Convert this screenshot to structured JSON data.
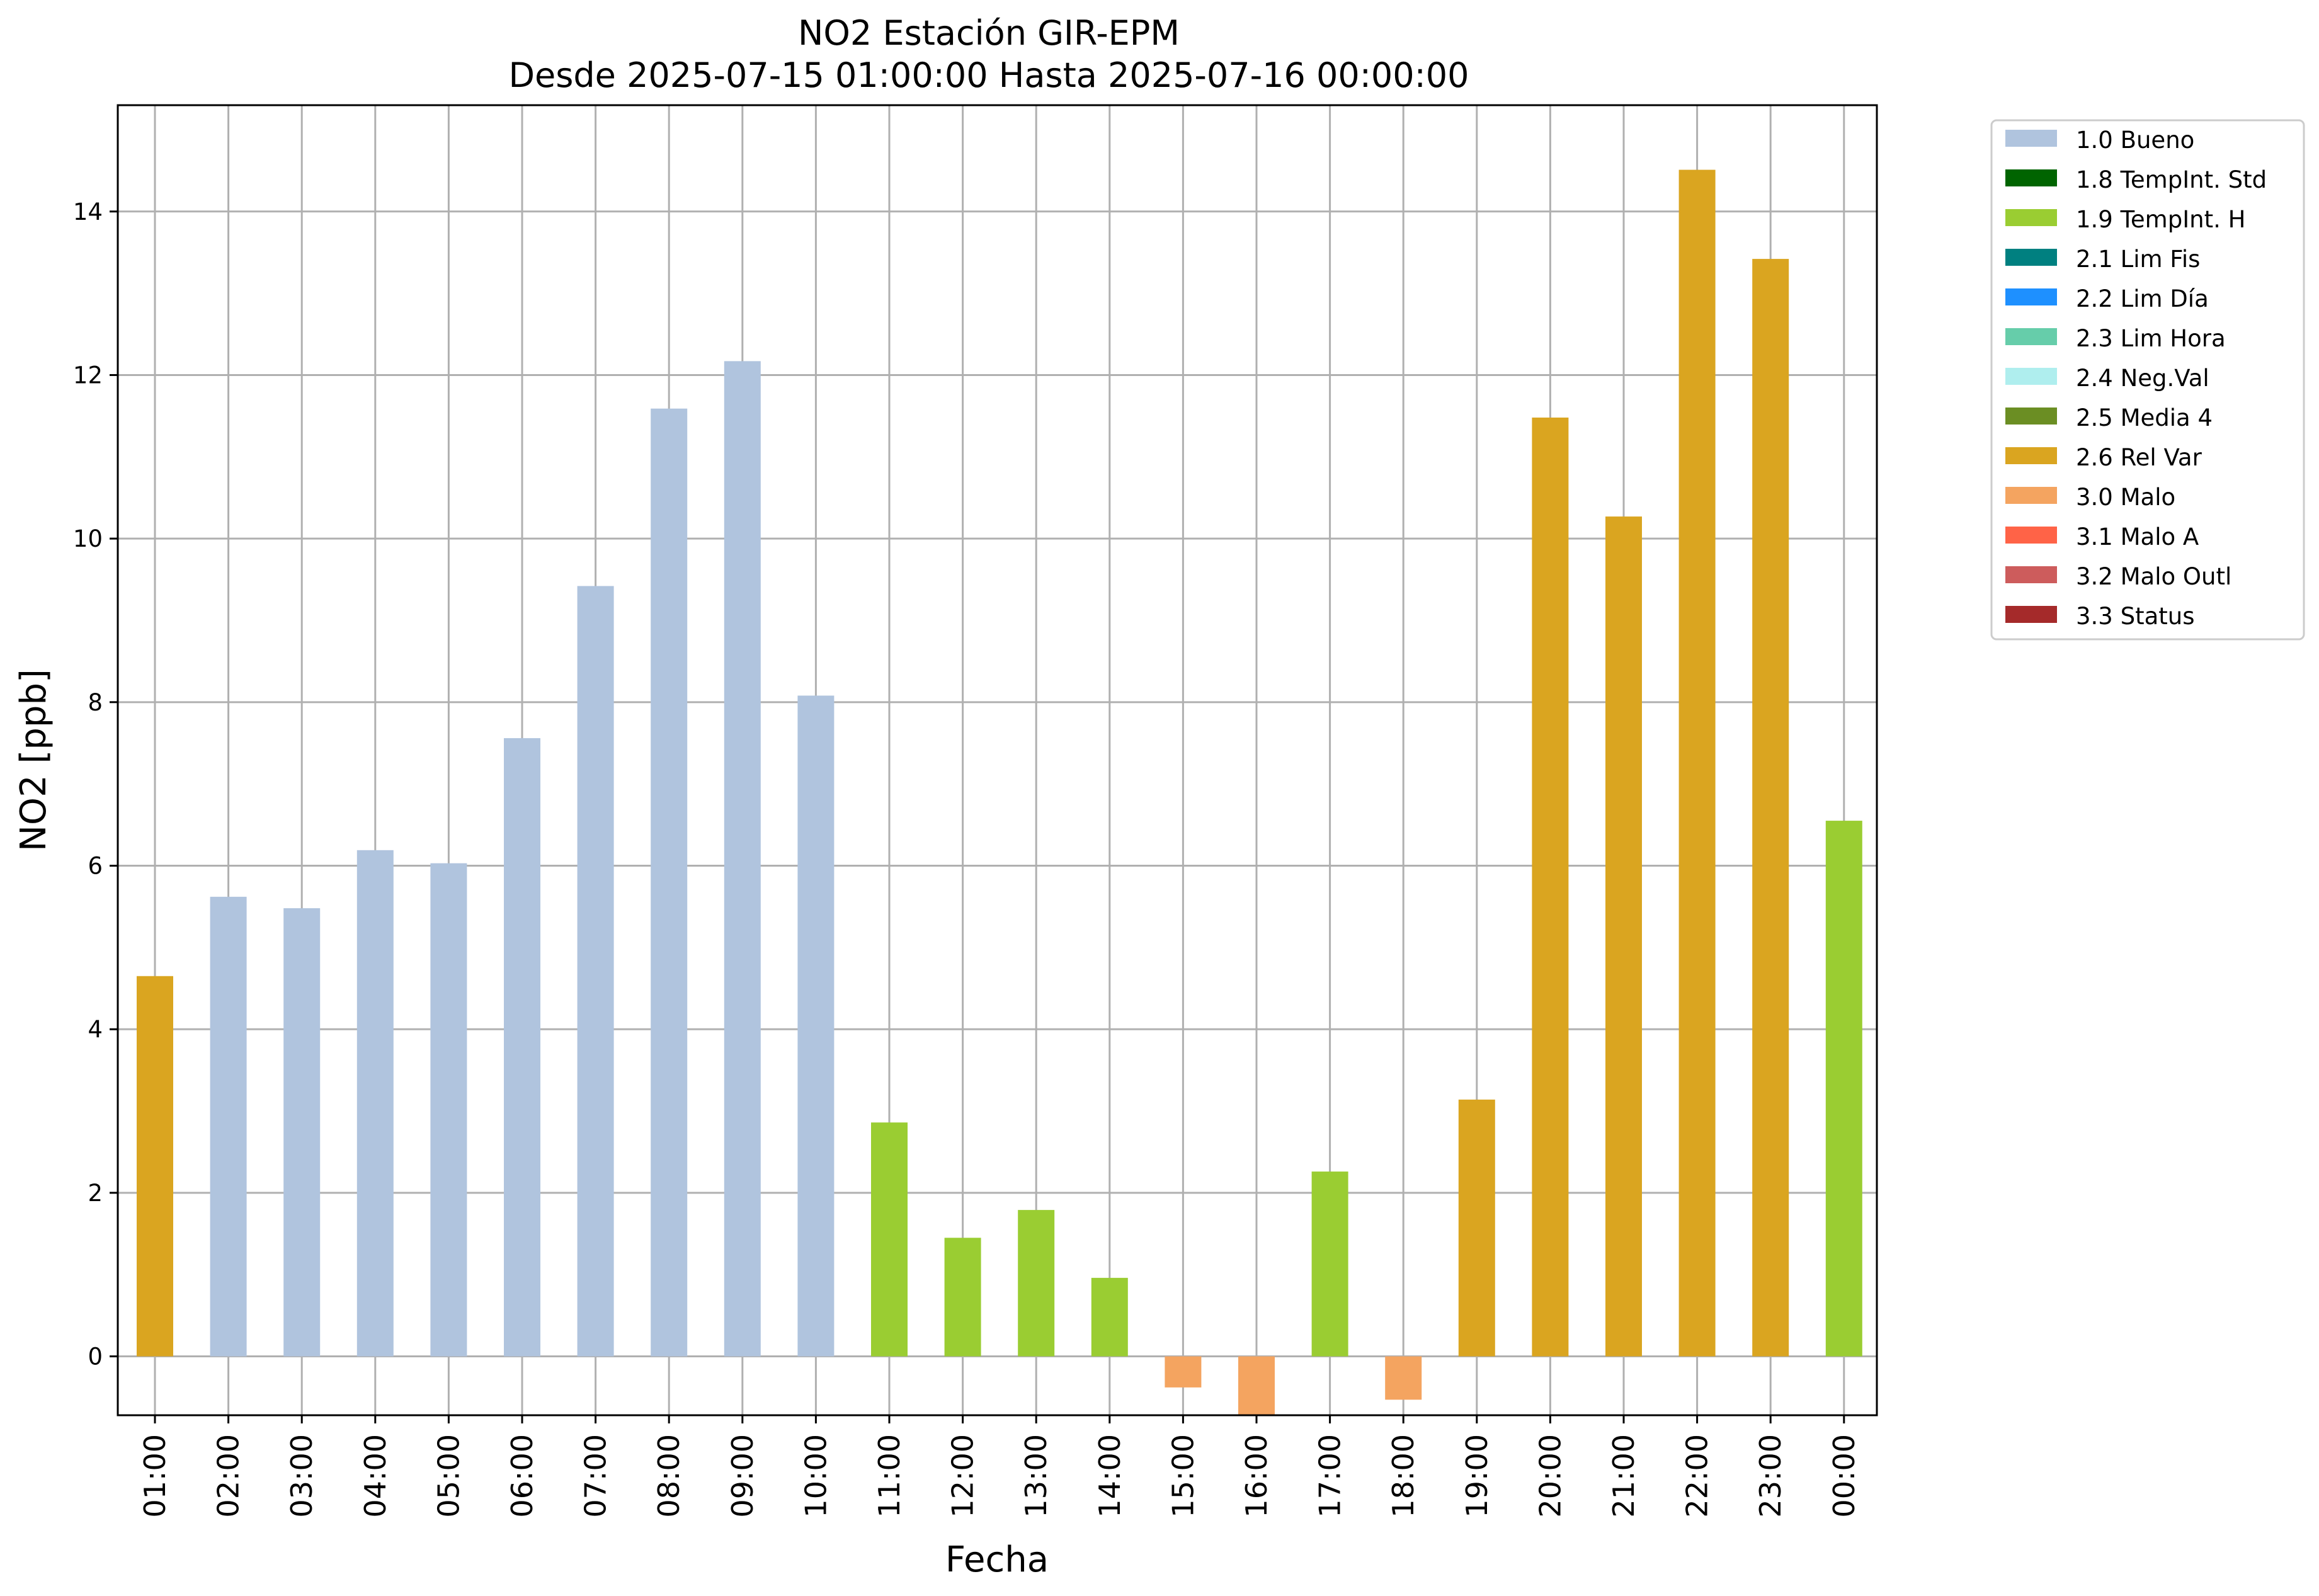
{
  "chart_data": {
    "type": "bar",
    "title": "NO2 Estación GIR-EPM",
    "subtitle": "Desde 2025-07-15 01:00:00 Hasta 2025-07-16 00:00:00",
    "xlabel": "Fecha",
    "ylabel": "NO2 [ppb]",
    "ylim": [
      -0.72,
      15.3
    ],
    "yticks": [
      "0",
      "2",
      "4",
      "6",
      "8",
      "10",
      "12",
      "14"
    ],
    "grid": true,
    "legend_position": "outside-top-right",
    "categories": [
      "01:00",
      "02:00",
      "03:00",
      "04:00",
      "05:00",
      "06:00",
      "07:00",
      "08:00",
      "09:00",
      "10:00",
      "11:00",
      "12:00",
      "13:00",
      "14:00",
      "15:00",
      "16:00",
      "17:00",
      "18:00",
      "19:00",
      "20:00",
      "21:00",
      "22:00",
      "23:00",
      "00:00"
    ],
    "values": [
      4.65,
      5.62,
      5.48,
      6.19,
      6.03,
      7.56,
      9.42,
      11.59,
      12.17,
      8.08,
      2.86,
      1.45,
      1.79,
      0.96,
      -0.38,
      -0.72,
      2.26,
      -0.53,
      3.14,
      11.48,
      10.27,
      14.51,
      13.42,
      6.55
    ],
    "flags": [
      "2.6 Rel Var",
      "1.0 Bueno",
      "1.0 Bueno",
      "1.0 Bueno",
      "1.0 Bueno",
      "1.0 Bueno",
      "1.0 Bueno",
      "1.0 Bueno",
      "1.0 Bueno",
      "1.0 Bueno",
      "1.9 TempInt. H",
      "1.9 TempInt. H",
      "1.9 TempInt. H",
      "1.9 TempInt. H",
      "3.0 Malo",
      "3.0 Malo",
      "1.9 TempInt. H",
      "3.0 Malo",
      "2.6 Rel Var",
      "2.6 Rel Var",
      "2.6 Rel Var",
      "2.6 Rel Var",
      "2.6 Rel Var",
      "1.9 TempInt. H"
    ],
    "legend": [
      {
        "label": "1.0 Bueno",
        "color": "#b0c4de"
      },
      {
        "label": "1.8 TempInt. Std",
        "color": "#006400"
      },
      {
        "label": "1.9 TempInt. H",
        "color": "#9acd32"
      },
      {
        "label": "2.1 Lim Fis",
        "color": "#008080"
      },
      {
        "label": "2.2 Lim Día",
        "color": "#1e90ff"
      },
      {
        "label": "2.3 Lim Hora",
        "color": "#66cdaa"
      },
      {
        "label": "2.4 Neg.Val",
        "color": "#afeeee"
      },
      {
        "label": "2.5 Media 4",
        "color": "#6b8e23"
      },
      {
        "label": "2.6 Rel Var",
        "color": "#daa520"
      },
      {
        "label": "3.0 Malo",
        "color": "#f4a460"
      },
      {
        "label": "3.1 Malo A",
        "color": "#ff6347"
      },
      {
        "label": "3.2 Malo Outl",
        "color": "#cd5c5c"
      },
      {
        "label": "3.3 Status",
        "color": "#a52a2a"
      }
    ]
  }
}
